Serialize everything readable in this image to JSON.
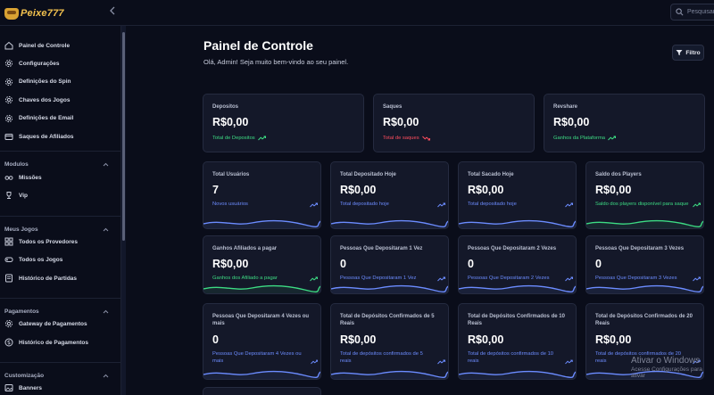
{
  "brand": {
    "name": "Peixe777"
  },
  "search": {
    "placeholder": "Pesquisar"
  },
  "sidebar": {
    "items": [
      {
        "label": "Painel de Controle",
        "icon": "home-icon"
      },
      {
        "label": "Configurações",
        "icon": "gear-icon"
      },
      {
        "label": "Definições do Spin",
        "icon": "gear-icon"
      },
      {
        "label": "Chaves dos Jogos",
        "icon": "gear-icon"
      },
      {
        "label": "Definições de Email",
        "icon": "gear-icon"
      },
      {
        "label": "Saques de Afiliados",
        "icon": "wallet-icon"
      }
    ],
    "sections": [
      {
        "title": "Modulos",
        "items": [
          {
            "label": "Missões",
            "icon": "glasses-icon"
          },
          {
            "label": "Vip",
            "icon": "trophy-icon"
          }
        ]
      },
      {
        "title": "Meus Jogos",
        "items": [
          {
            "label": "Todos os Provedores",
            "icon": "grid-icon"
          },
          {
            "label": "Todos os Jogos",
            "icon": "gamepad-icon"
          },
          {
            "label": "Histórico de Partidas",
            "icon": "list-icon"
          }
        ]
      },
      {
        "title": "Pagamentos",
        "items": [
          {
            "label": "Gateway de Pagamentos",
            "icon": "gear-icon"
          },
          {
            "label": "Histórico de Pagamentos",
            "icon": "dollar-icon"
          }
        ]
      },
      {
        "title": "Customização",
        "items": [
          {
            "label": "Banners",
            "icon": "image-icon"
          }
        ]
      }
    ]
  },
  "header": {
    "title": "Painel de Controle",
    "subtitle": "Olá, Admin! Seja muito bem-vindo ao seu painel.",
    "filter_label": "Filtro"
  },
  "top_cards": [
    {
      "label": "Depositos",
      "value": "R$0,00",
      "sub": "Total de Depositos",
      "trend": "up",
      "color": "#3ddc84"
    },
    {
      "label": "Saques",
      "value": "R$0,00",
      "sub": "Total de saques",
      "trend": "down",
      "color": "#ff4d5e"
    },
    {
      "label": "Revshare",
      "value": "R$0,00",
      "sub": "Ganhos da Plataforma",
      "trend": "up",
      "color": "#3ddc84"
    }
  ],
  "stat_cards": [
    {
      "label": "Total Usuários",
      "value": "7",
      "sub": "Novos usuários",
      "color": "#6c8cff"
    },
    {
      "label": "Total Depositado Hoje",
      "value": "R$0,00",
      "sub": "Total depositado hoje",
      "color": "#6c8cff"
    },
    {
      "label": "Total Sacado Hoje",
      "value": "R$0,00",
      "sub": "Total depositado hoje",
      "color": "#6c8cff"
    },
    {
      "label": "Saldo dos Players",
      "value": "R$0,00",
      "sub": "Saldo dos players disponível para saque",
      "color": "#3ddc84"
    },
    {
      "label": "Ganhos Afiliados a pagar",
      "value": "R$0,00",
      "sub": "Ganhos dos Afiliado a pagar",
      "color": "#3ddc84"
    },
    {
      "label": "Pessoas Que Depositaram 1 Vez",
      "value": "0",
      "sub": "Pessoas Que Depositaram 1 Vez",
      "color": "#6c8cff"
    },
    {
      "label": "Pessoas Que Depositaram 2 Vezes",
      "value": "0",
      "sub": "Pessoas Que Depositaram 2 Vezes",
      "color": "#6c8cff"
    },
    {
      "label": "Pessoas Que Depositaram 3 Vezes",
      "value": "0",
      "sub": "Pessoas Que Depositaram 3 Vezes",
      "color": "#6c8cff"
    },
    {
      "label": "Pessoas Que Depositaram 4 Vezes ou mais",
      "value": "0",
      "sub": "Pessoas Que Depositaram 4 Vezes ou mais",
      "color": "#6c8cff"
    },
    {
      "label": "Total de Depósitos Confirmados de 5 Reais",
      "value": "R$0,00",
      "sub": "Total de depósitos confirmados de 5 reais",
      "color": "#6c8cff"
    },
    {
      "label": "Total de Depósitos Confirmados de 10 Reais",
      "value": "R$0,00",
      "sub": "Total de depósitos confirmados de 10 reais",
      "color": "#6c8cff"
    },
    {
      "label": "Total de Depósitos Confirmados de 20 Reais",
      "value": "R$0,00",
      "sub": "Total de depósitos confirmados de 20 reais",
      "color": "#6c8cff"
    }
  ],
  "watermark": {
    "line1": "Ativar o Windows",
    "line2": "Acesse Configurações para ativar"
  }
}
